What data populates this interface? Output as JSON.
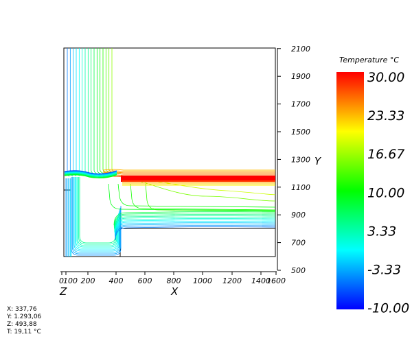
{
  "colorbar": {
    "title": "Temperature °C",
    "ticks": [
      "30.00",
      "23.33",
      "16.67",
      "10.00",
      "3.33",
      "-3.33",
      "-10.00"
    ],
    "colors": [
      "#ff0000",
      "#ffff00",
      "#00ff00",
      "#00ffff",
      "#0000ff"
    ]
  },
  "axes": {
    "x_title": "X",
    "y_title": "Y",
    "z_title": "Z",
    "x_ticks": [
      "200",
      "400",
      "600",
      "800",
      "1000",
      "1200",
      "1400",
      "1600"
    ],
    "z_overlap_ticks": [
      "0",
      "100"
    ],
    "y_ticks": [
      "500",
      "700",
      "900",
      "1100",
      "1300",
      "1500",
      "1700",
      "1900",
      "2100"
    ]
  },
  "probe": {
    "x": "X: 337,76",
    "y": "Y: 1.293,06",
    "z": "Z: 493,88",
    "t": "T: 19,11 °C"
  }
}
